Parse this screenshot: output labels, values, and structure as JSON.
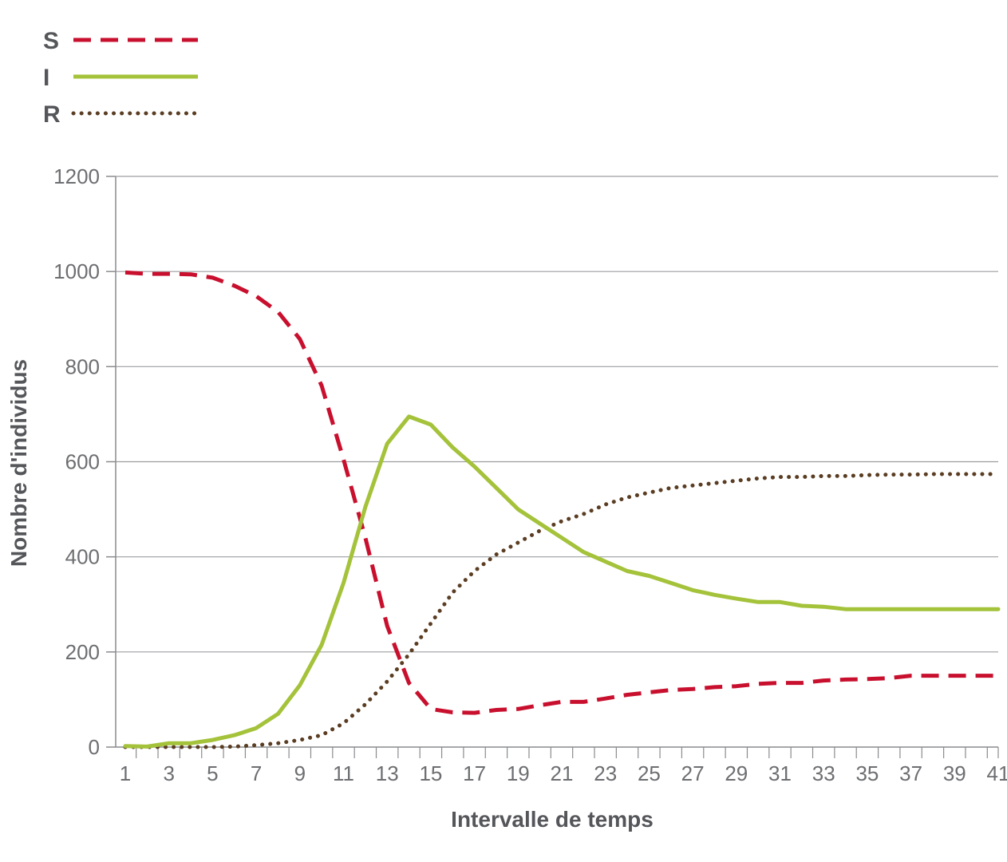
{
  "chart_data": {
    "type": "line",
    "title": "",
    "xlabel": "Intervalle de temps",
    "ylabel": "Nombre d'individus",
    "ylim": [
      0,
      1200
    ],
    "xlim": [
      1,
      41
    ],
    "y_ticks": [
      "0",
      "200",
      "400",
      "600",
      "800",
      "1000",
      "1200"
    ],
    "x_ticks": [
      "1",
      "3",
      "5",
      "7",
      "9",
      "11",
      "13",
      "15",
      "17",
      "19",
      "21",
      "23",
      "25",
      "27",
      "29",
      "31",
      "33",
      "35",
      "37",
      "39",
      "41"
    ],
    "grid": "horizontal",
    "legend_position": "top-left",
    "x": [
      1,
      2,
      3,
      4,
      5,
      6,
      7,
      8,
      9,
      10,
      11,
      12,
      13,
      14,
      15,
      16,
      17,
      18,
      19,
      20,
      21,
      22,
      23,
      24,
      25,
      26,
      27,
      28,
      29,
      30,
      31,
      32,
      33,
      34,
      35,
      36,
      37,
      38,
      39,
      40,
      41
    ],
    "series": [
      {
        "name": "S",
        "color": "#c8102e",
        "style": "dashed",
        "values": [
          998,
          995,
          995,
          994,
          987,
          970,
          948,
          915,
          858,
          760,
          605,
          440,
          255,
          135,
          80,
          73,
          72,
          78,
          80,
          88,
          95,
          95,
          102,
          110,
          115,
          120,
          122,
          126,
          128,
          133,
          135,
          135,
          140,
          142,
          143,
          145,
          150,
          150,
          150,
          150,
          150
        ]
      },
      {
        "name": "I",
        "color": "#a4c23a",
        "style": "solid",
        "values": [
          2,
          1,
          8,
          8,
          15,
          25,
          40,
          70,
          130,
          215,
          345,
          505,
          638,
          695,
          678,
          630,
          590,
          545,
          500,
          470,
          440,
          410,
          390,
          370,
          360,
          345,
          330,
          320,
          312,
          305,
          305,
          297,
          295,
          290,
          290,
          290,
          290,
          290,
          290,
          290,
          290
        ]
      },
      {
        "name": "R",
        "color": "#5a3d22",
        "style": "dotted",
        "values": [
          0,
          0,
          0,
          0,
          0,
          1,
          4,
          8,
          15,
          25,
          50,
          90,
          138,
          195,
          260,
          325,
          370,
          405,
          430,
          455,
          475,
          490,
          510,
          525,
          535,
          545,
          550,
          555,
          560,
          565,
          568,
          568,
          570,
          570,
          572,
          573,
          573,
          574,
          574,
          574,
          574
        ]
      }
    ]
  }
}
